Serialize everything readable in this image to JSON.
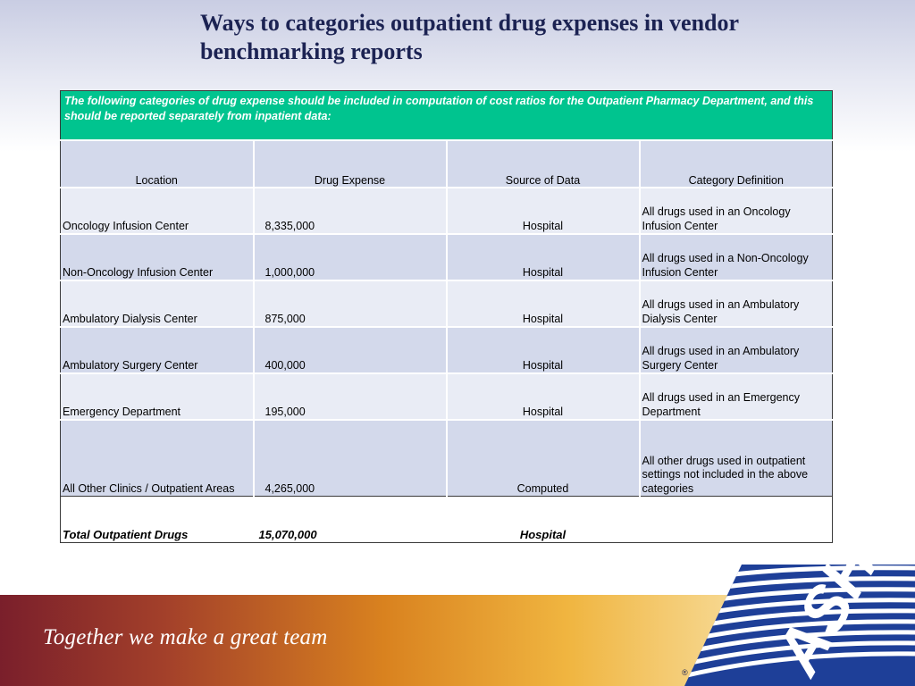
{
  "slide": {
    "title": "Ways to categories outpatient drug expenses in vendor benchmarking reports"
  },
  "table": {
    "intro": "The following categories of drug expense should be included in computation of cost ratios for the Outpatient Pharmacy Department, and this should be reported separately from inpatient data:",
    "headers": [
      "Location",
      "Drug Expense",
      "Source of Data",
      "Category Definition"
    ],
    "rows": [
      [
        "Oncology Infusion Center",
        "8,335,000",
        "Hospital",
        "All drugs used in an Oncology Infusion Center"
      ],
      [
        "Non-Oncology Infusion Center",
        "1,000,000",
        "Hospital",
        "All drugs used in a Non-Oncology Infusion Center"
      ],
      [
        "Ambulatory Dialysis Center",
        "875,000",
        "Hospital",
        "All drugs used in an Ambulatory Dialysis Center"
      ],
      [
        "Ambulatory Surgery Center",
        "400,000",
        "Hospital",
        "All drugs used in an Ambulatory Surgery Center"
      ],
      [
        "Emergency Department",
        "195,000",
        "Hospital",
        "All drugs used in an Emergency Department"
      ],
      [
        "All Other Clinics / Outpatient Areas",
        "4,265,000",
        "Computed",
        "All other drugs used in outpatient settings not included in the above categories"
      ]
    ],
    "total": [
      "Total Outpatient Drugs",
      "15,070,000",
      "Hospital",
      ""
    ]
  },
  "footer": {
    "tagline": "Together we make a great team",
    "logo_text": "ASHP",
    "registered_mark": "®"
  },
  "colors": {
    "title": "#1c2353",
    "intro_bg": "#00c48f",
    "row_light": "#e9ecf5",
    "row_dark": "#d3d9eb",
    "logo_blue": "#1e3f98"
  }
}
